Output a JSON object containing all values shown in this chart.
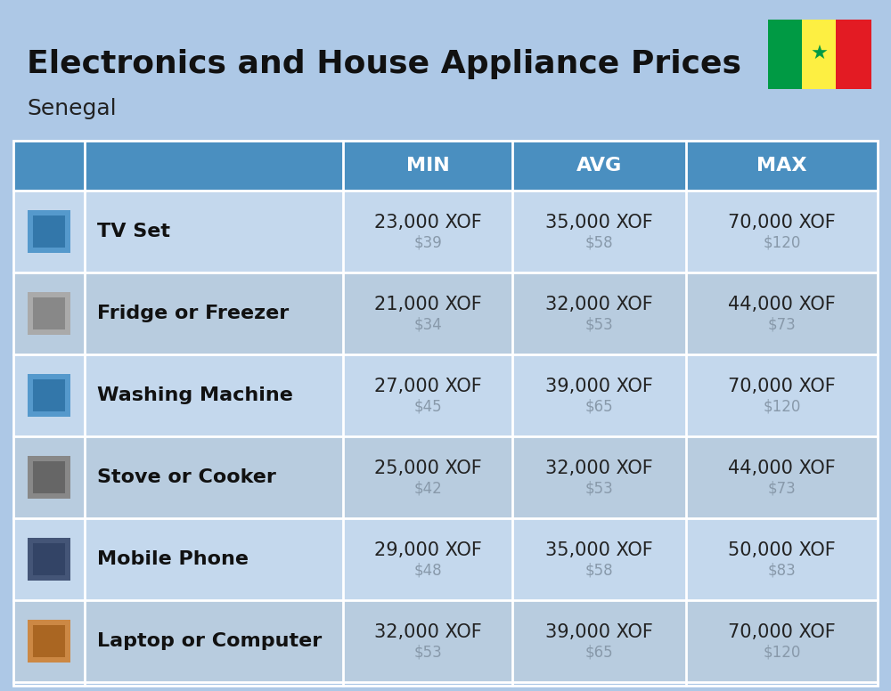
{
  "title": "Electronics and House Appliance Prices",
  "subtitle": "Senegal",
  "background_color": "#adc8e6",
  "header_bg_color": "#4a8fc0",
  "header_text_color": "#ffffff",
  "columns": [
    "MIN",
    "AVG",
    "MAX"
  ],
  "rows": [
    {
      "name": "TV Set",
      "min_xof": "23,000 XOF",
      "min_usd": "$39",
      "avg_xof": "35,000 XOF",
      "avg_usd": "$58",
      "max_xof": "70,000 XOF",
      "max_usd": "$120"
    },
    {
      "name": "Fridge or Freezer",
      "min_xof": "21,000 XOF",
      "min_usd": "$34",
      "avg_xof": "32,000 XOF",
      "avg_usd": "$53",
      "max_xof": "44,000 XOF",
      "max_usd": "$73"
    },
    {
      "name": "Washing Machine",
      "min_xof": "27,000 XOF",
      "min_usd": "$45",
      "avg_xof": "39,000 XOF",
      "avg_usd": "$65",
      "max_xof": "70,000 XOF",
      "max_usd": "$120"
    },
    {
      "name": "Stove or Cooker",
      "min_xof": "25,000 XOF",
      "min_usd": "$42",
      "avg_xof": "32,000 XOF",
      "avg_usd": "$53",
      "max_xof": "44,000 XOF",
      "max_usd": "$73"
    },
    {
      "name": "Mobile Phone",
      "min_xof": "29,000 XOF",
      "min_usd": "$48",
      "avg_xof": "35,000 XOF",
      "avg_usd": "$58",
      "max_xof": "50,000 XOF",
      "max_usd": "$83"
    },
    {
      "name": "Laptop or Computer",
      "min_xof": "32,000 XOF",
      "min_usd": "$53",
      "avg_xof": "39,000 XOF",
      "avg_usd": "$65",
      "max_xof": "70,000 XOF",
      "max_usd": "$120"
    }
  ],
  "title_fontsize": 26,
  "subtitle_fontsize": 18,
  "header_fontsize": 16,
  "name_fontsize": 16,
  "value_fontsize": 15,
  "usd_fontsize": 12,
  "usd_color": "#8899aa",
  "name_color": "#111111",
  "value_color": "#222222",
  "flag_green": "#009A44",
  "flag_yellow": "#FDEF42",
  "flag_red": "#E31B23",
  "flag_star_color": "#009A44",
  "row_colors": [
    "#c4d8ed",
    "#b8ccdf"
  ]
}
